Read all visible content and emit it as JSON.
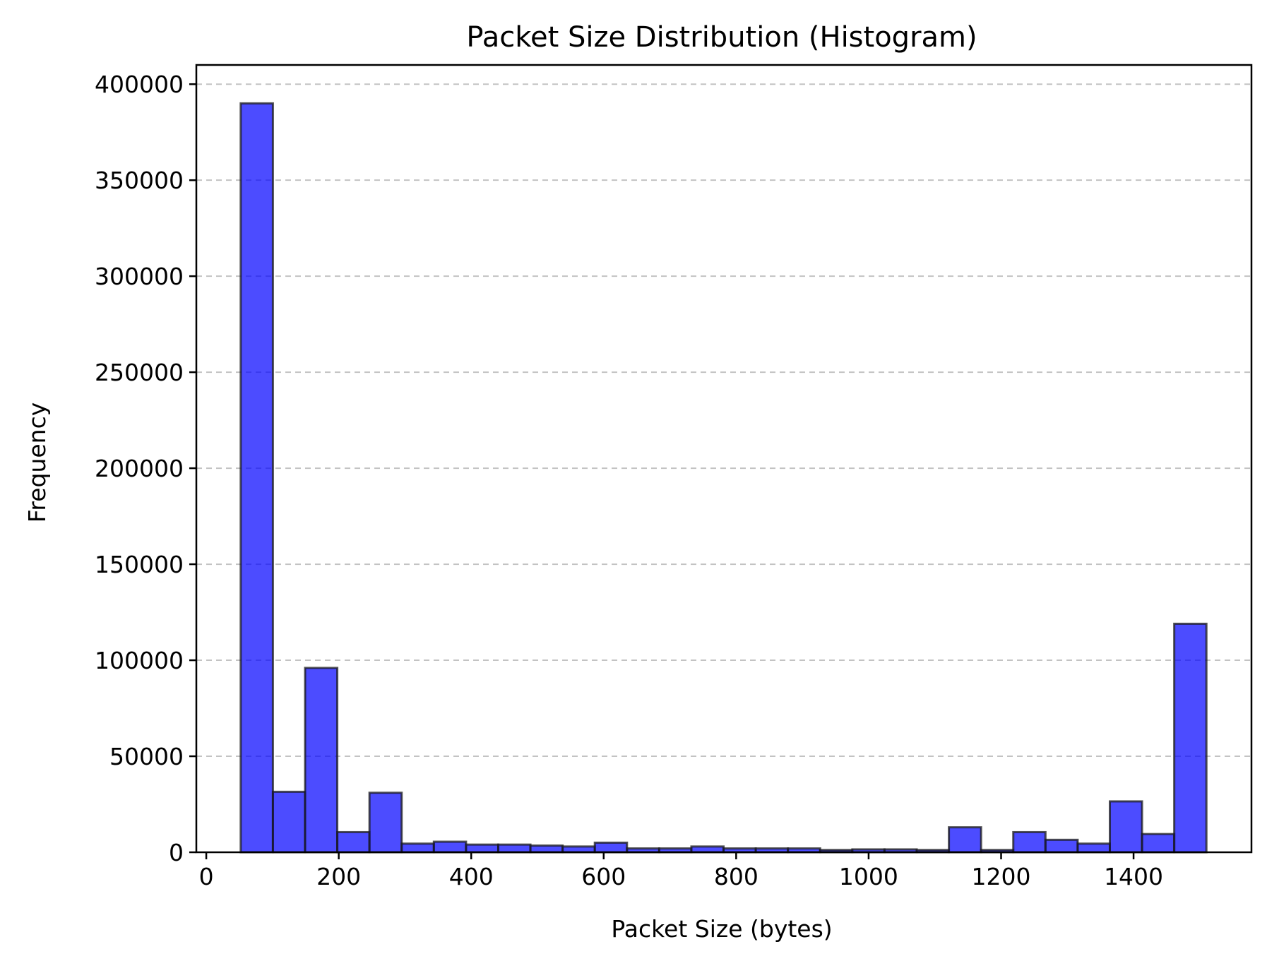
{
  "chart_data": {
    "type": "bar",
    "title": "Packet Size Distribution (Histogram)",
    "xlabel": "Packet Size (bytes)",
    "ylabel": "Frequency",
    "xlim": [
      -15,
      1578
    ],
    "ylim": [
      0,
      410000
    ],
    "xticks": [
      0,
      200,
      400,
      600,
      800,
      1000,
      1200,
      1400
    ],
    "yticks": [
      0,
      50000,
      100000,
      150000,
      200000,
      250000,
      300000,
      350000,
      400000
    ],
    "grid": {
      "axis": "y",
      "style": "dashed"
    },
    "bar_color": "#0000ff",
    "bar_edge_color": "#000000",
    "bin_edges": [
      52,
      100.6,
      149.2,
      197.8,
      246.4,
      295,
      343.6,
      392.2,
      440.8,
      489.4,
      538,
      586.6,
      635.2,
      683.8,
      732.4,
      781,
      829.6,
      878.2,
      926.8,
      975.4,
      1024,
      1072.6,
      1121.2,
      1169.8,
      1218.4,
      1267,
      1315.6,
      1364.2,
      1412.8,
      1461.4,
      1510
    ],
    "values": [
      390000,
      31500,
      96000,
      10500,
      31000,
      4500,
      5500,
      4000,
      4000,
      3500,
      3000,
      5000,
      2000,
      2000,
      3000,
      2000,
      2000,
      2000,
      1200,
      1500,
      1500,
      1200,
      13000,
      1200,
      10500,
      6500,
      4500,
      26500,
      9500,
      119000
    ]
  }
}
